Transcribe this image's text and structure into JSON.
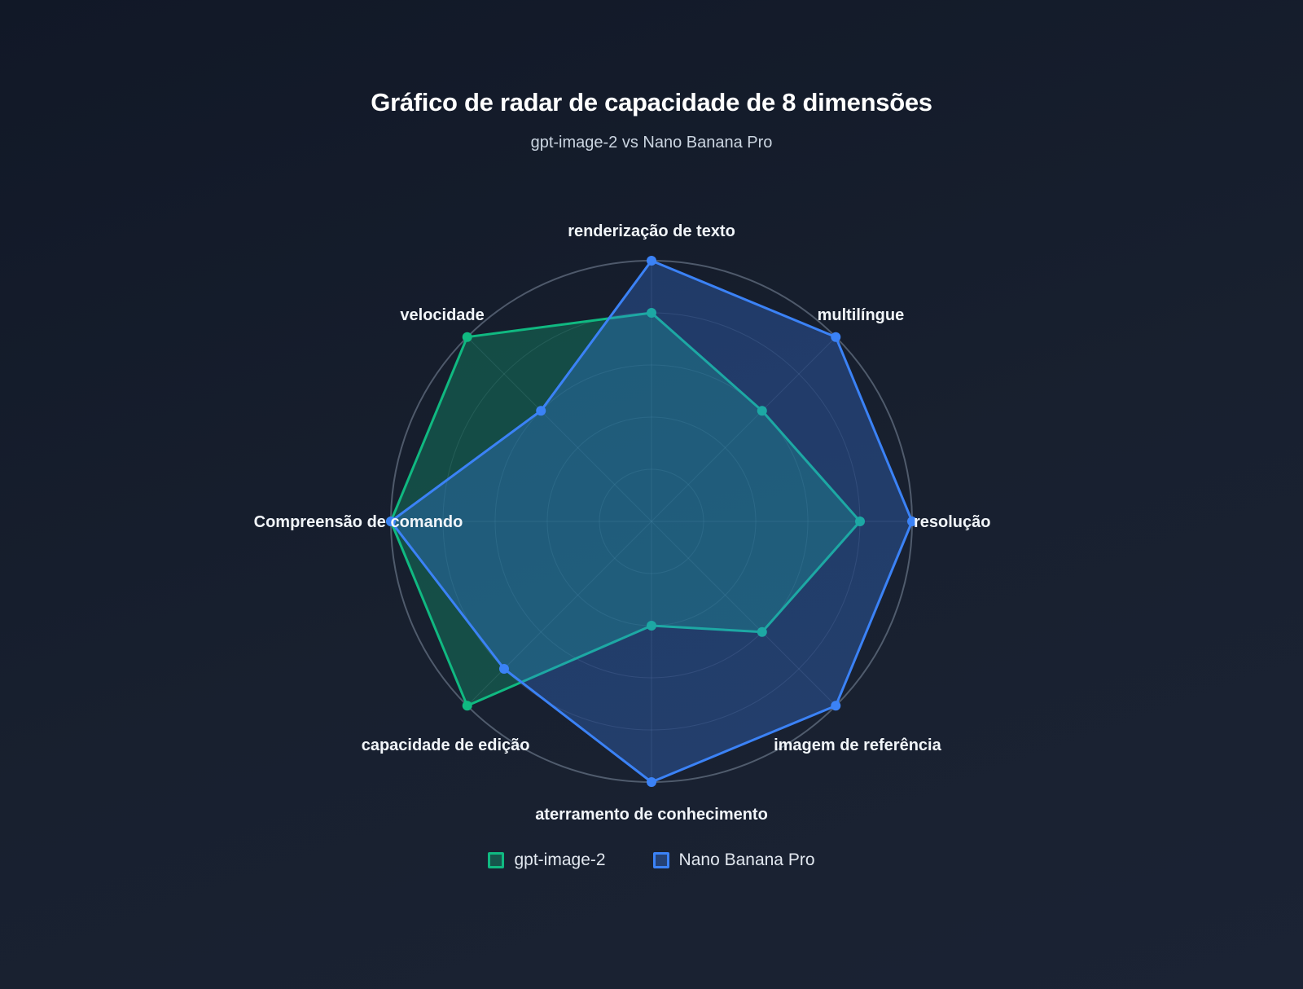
{
  "chart_data": {
    "type": "radar",
    "title": "Gráfico de radar de capacidade de 8 dimensões",
    "subtitle": "gpt-image-2 vs Nano Banana Pro",
    "axes": [
      "renderização de texto",
      "multilíngue",
      "resolução",
      "imagem de referência",
      "aterramento de conhecimento",
      "capacidade de edição",
      "Compreensão de comando",
      "velocidade"
    ],
    "range": [
      0,
      10
    ],
    "rings": 5,
    "grid": true,
    "legend_position": "bottom",
    "series": [
      {
        "name": "gpt-image-2",
        "values": [
          8,
          6,
          8,
          6,
          4,
          10,
          10,
          10
        ],
        "color": "#10b981",
        "fill": "rgba(16,185,129,0.30)"
      },
      {
        "name": "Nano Banana Pro",
        "values": [
          10,
          10,
          10,
          10,
          10,
          8,
          10,
          6
        ],
        "color": "#3b82f6",
        "fill": "rgba(59,130,246,0.30)"
      }
    ]
  }
}
